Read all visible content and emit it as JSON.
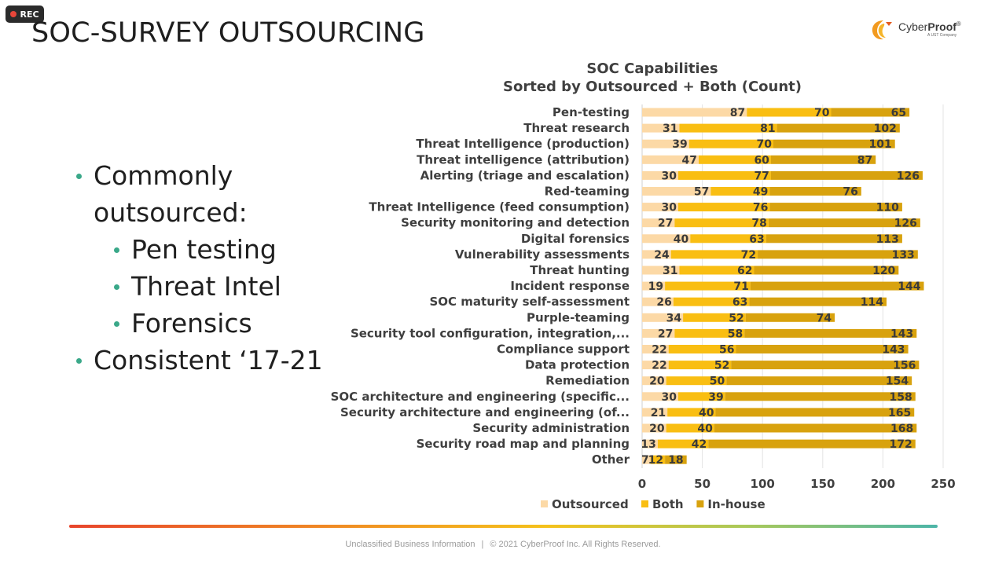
{
  "recording": {
    "label": "REC",
    "dot_color": "#e8463a"
  },
  "slide": {
    "title": "SOC-SURVEY OUTSOURCING"
  },
  "logo": {
    "name_regular": "Cyber",
    "name_bold": "Proof",
    "trademark": "®",
    "tagline": "A UST Company"
  },
  "bullets": {
    "commonly_line1": "Commonly",
    "commonly_line2": "outsourced:",
    "sub": [
      "Pen testing",
      "Threat Intel",
      "Forensics"
    ],
    "consistent": "Consistent ‘17-21"
  },
  "colors": {
    "outsourced": "#fcd9a6",
    "both": "#f9be12",
    "in_house": "#d8a20e",
    "accent_bullet": "#3aa889"
  },
  "chart_data": {
    "type": "bar",
    "orientation": "horizontal",
    "stacked": true,
    "title": "SOC Capabilities",
    "subtitle": "Sorted by Outsourced + Both (Count)",
    "xlim": [
      0,
      250
    ],
    "xticks": [
      "0",
      "50",
      "100",
      "150",
      "200",
      "250"
    ],
    "grid": true,
    "legend": "bottom",
    "categories": [
      "Pen-testing",
      "Threat research",
      "Threat Intelligence (production)",
      "Threat intelligence (attribution)",
      "Alerting (triage and escalation)",
      "Red-teaming",
      "Threat Intelligence (feed consumption)",
      "Security monitoring and detection",
      "Digital forensics",
      "Vulnerability assessments",
      "Threat hunting",
      "Incident response",
      "SOC maturity self-assessment",
      "Purple-teaming",
      "Security tool configuration, integration,...",
      "Compliance support",
      "Data protection",
      "Remediation",
      "SOC architecture and engineering (specific...",
      "Security architecture and engineering (of...",
      "Security administration",
      "Security road map and planning",
      "Other"
    ],
    "series": [
      {
        "name": "Outsourced",
        "color": "#fcd9a6",
        "values": [
          87,
          31,
          39,
          47,
          30,
          57,
          30,
          27,
          40,
          24,
          31,
          19,
          26,
          34,
          27,
          22,
          22,
          20,
          30,
          21,
          20,
          13,
          7
        ]
      },
      {
        "name": "Both",
        "color": "#f9be12",
        "values": [
          70,
          81,
          70,
          60,
          77,
          49,
          76,
          78,
          63,
          72,
          62,
          71,
          63,
          52,
          58,
          56,
          52,
          50,
          39,
          40,
          40,
          42,
          12
        ]
      },
      {
        "name": "In-house",
        "color": "#d8a20e",
        "values": [
          65,
          102,
          101,
          87,
          126,
          76,
          110,
          126,
          113,
          133,
          120,
          144,
          114,
          74,
          143,
          143,
          156,
          154,
          158,
          165,
          168,
          172,
          18
        ]
      }
    ]
  },
  "footer": {
    "classification": "Unclassified Business Information",
    "separator": "|",
    "copyright": "© 2021 CyberProof Inc. All Rights Reserved."
  }
}
